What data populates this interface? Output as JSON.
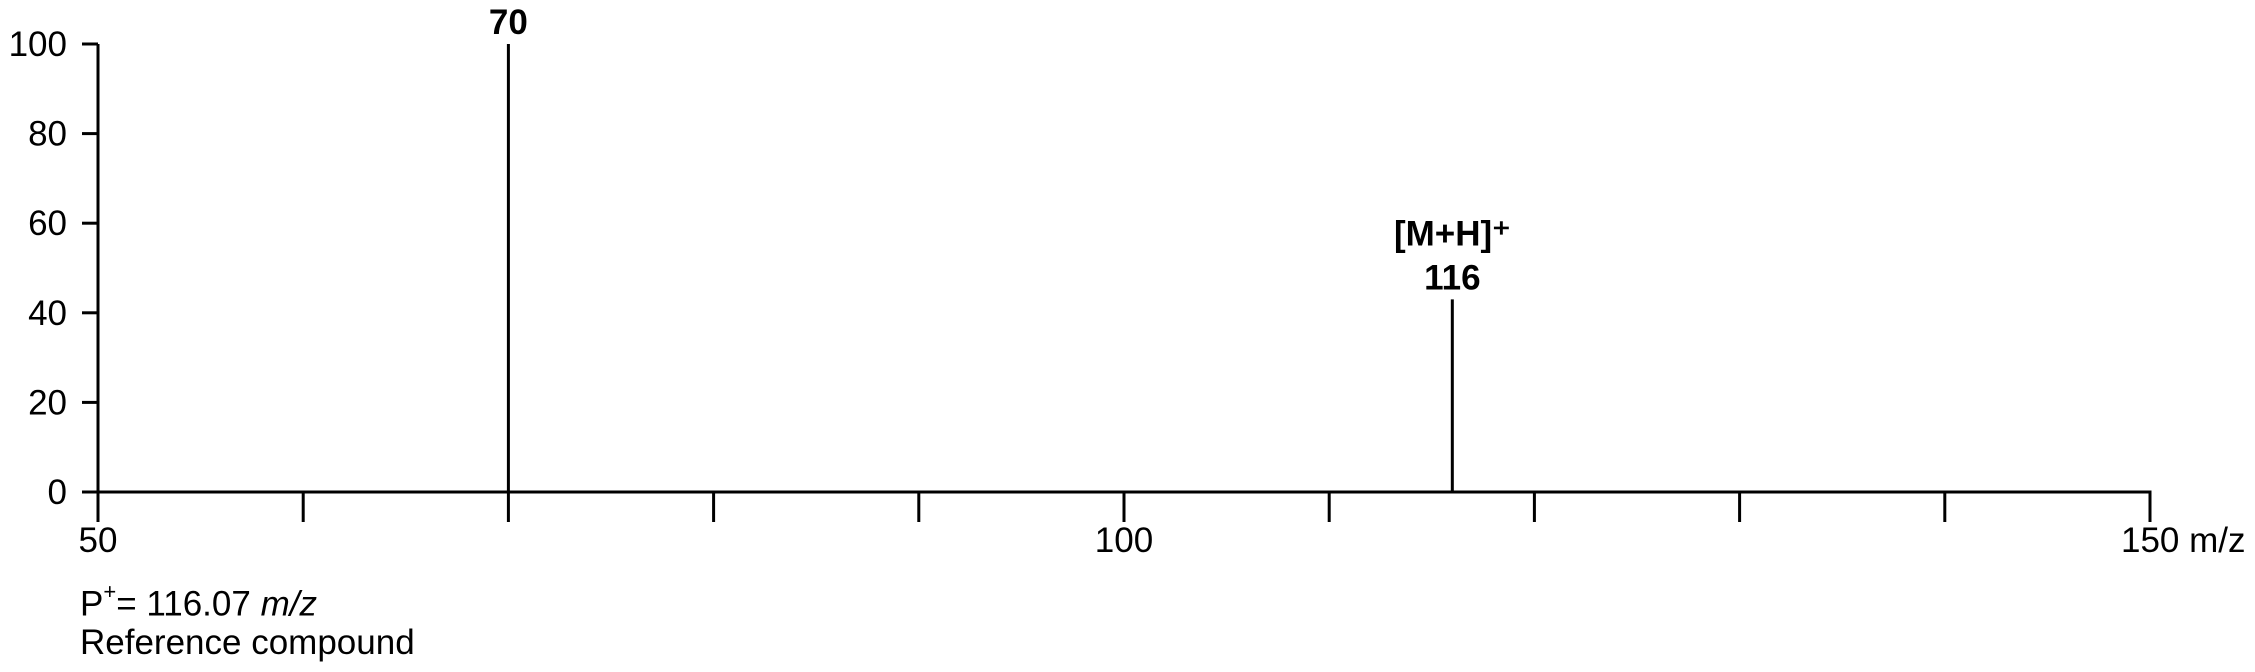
{
  "chart_data": {
    "type": "bar",
    "x": [
      70,
      116
    ],
    "values": [
      100,
      43
    ],
    "xlim": [
      50,
      150
    ],
    "ylim": [
      0,
      100
    ],
    "x_ticks": [
      50,
      60,
      70,
      80,
      90,
      100,
      110,
      120,
      130,
      140,
      150
    ],
    "x_tick_labels": [
      {
        "value": 50,
        "label": "50"
      },
      {
        "value": 100,
        "label": "100"
      },
      {
        "value": 150,
        "label": "150 m/z"
      }
    ],
    "y_ticks": [
      0,
      20,
      40,
      60,
      80,
      100
    ],
    "y_tick_labels": [
      "0",
      "20",
      "40",
      "60",
      "80",
      "100"
    ],
    "peak_labels": [
      {
        "x": 70,
        "lines": [
          "70"
        ]
      },
      {
        "x": 116,
        "lines": [
          "[M+H]⁺",
          "116"
        ]
      }
    ],
    "grid": false,
    "color": "#000000"
  },
  "notes": {
    "precursor_prefix": "P",
    "precursor_sup": "+",
    "precursor_value": "= 116.07 ",
    "precursor_unit": "m/z",
    "compound": "Reference compound"
  }
}
